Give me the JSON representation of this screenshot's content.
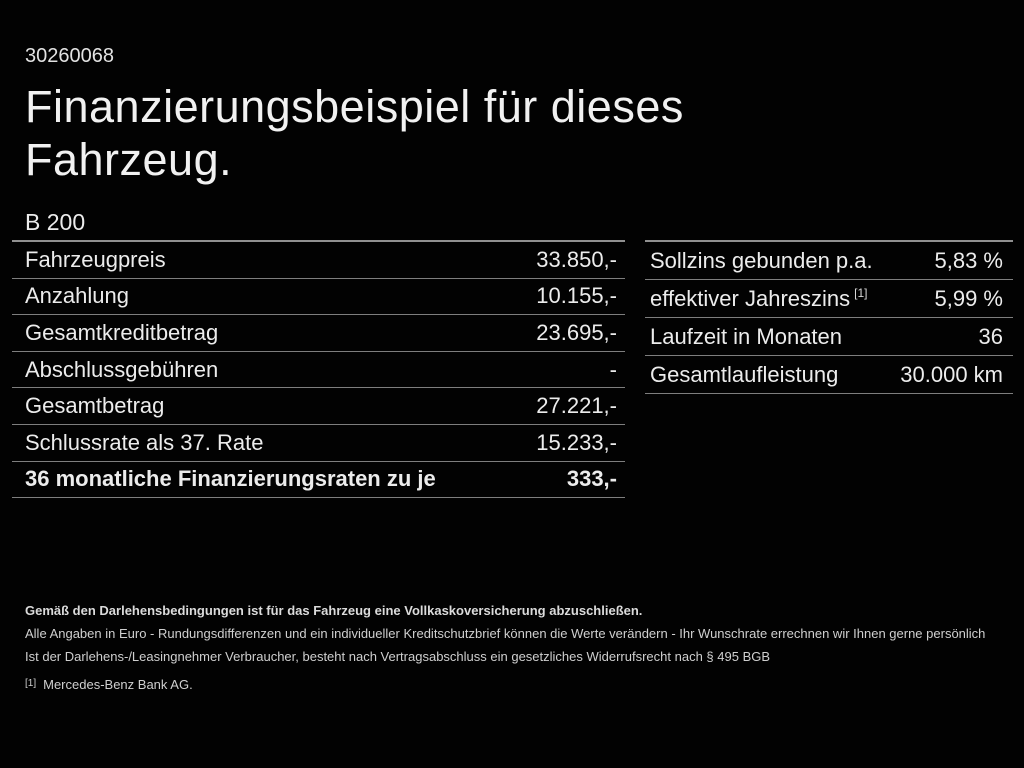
{
  "header": {
    "offer_id": "30260068",
    "title_line1": "Finanzierungsbeispiel für dieses",
    "title_line2": "Fahrzeug.",
    "model": "B 200"
  },
  "financing_table": {
    "rows": [
      {
        "label": "Fahrzeugpreis",
        "value": "33.850,-"
      },
      {
        "label": "Anzahlung",
        "value": "10.155,-"
      },
      {
        "label": "Gesamtkreditbetrag",
        "value": "23.695,-"
      },
      {
        "label": "Abschlussgebühren",
        "value": "-"
      },
      {
        "label": "Gesamtbetrag",
        "value": "27.221,-"
      },
      {
        "label": "Schlussrate als 37. Rate",
        "value": "15.233,-"
      },
      {
        "label": "36 monatliche Finanzierungsraten zu je",
        "value": "333,-"
      }
    ]
  },
  "conditions_table": {
    "rows": [
      {
        "label": "Sollzins gebunden p.a.",
        "value": "5,83 %"
      },
      {
        "label": "effektiver Jahreszins",
        "superscript": "[1]",
        "value": "5,99 %"
      },
      {
        "label": "Laufzeit in Monaten",
        "value": "36"
      },
      {
        "label": "Gesamtlaufleistung",
        "value": "30.000 km"
      }
    ]
  },
  "footer": {
    "insurance_note": "Gemäß den Darlehensbedingungen ist für das Fahrzeug eine Vollkaskoversicherung abzuschließen.",
    "disclaimer": "Alle Angaben in Euro - Rundungsdifferenzen und ein individueller Kreditschutzbrief können die Werte verändern - Ihr Wunschrate errechnen wir Ihnen gerne persönlich",
    "withdrawal_note": "Ist der Darlehens-/Leasingnehmer Verbraucher, besteht nach Vertragsabschluss ein gesetzliches Widerrufsrecht nach § 495 BGB",
    "footnote_marker": "[1]",
    "footnote_text": "Mercedes-Benz Bank AG."
  },
  "colors": {
    "background": "#020202",
    "text": "#ececec",
    "divider": "#7e7e7e",
    "footer_text": "#cfcfcf"
  }
}
